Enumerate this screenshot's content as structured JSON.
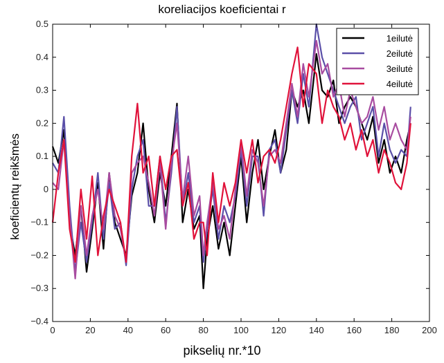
{
  "chart_data": {
    "type": "line",
    "title": "koreliacijos koeficientai r",
    "xlabel": "pikselių nr.*10",
    "ylabel": "koeficientų reikšmės",
    "xlim": [
      0,
      200
    ],
    "ylim": [
      -0.4,
      0.5
    ],
    "xticks": [
      "0",
      "20",
      "40",
      "60",
      "80",
      "100",
      "120",
      "140",
      "160",
      "180",
      "200"
    ],
    "yticks": [
      "0.5",
      "0.4",
      "0.3",
      "0.2",
      "0.1",
      "0",
      "−0.1",
      "−0.2",
      "−0.3",
      "−0.4"
    ],
    "grid": false,
    "legend_position": "top-right",
    "series": [
      {
        "name": "1eilutė",
        "color": "#000000",
        "x": [
          0,
          3,
          6,
          9,
          12,
          15,
          18,
          21,
          24,
          27,
          30,
          33,
          36,
          39,
          42,
          45,
          48,
          51,
          54,
          57,
          60,
          63,
          66,
          69,
          72,
          75,
          78,
          80,
          82,
          85,
          88,
          91,
          94,
          97,
          100,
          103,
          106,
          109,
          112,
          115,
          118,
          121,
          124,
          127,
          130,
          133,
          136,
          140,
          143,
          146,
          149,
          152,
          155,
          158,
          161,
          164,
          167,
          170,
          173,
          176,
          179,
          182,
          185,
          188,
          190
        ],
        "y": [
          0.13,
          0.08,
          0.18,
          -0.1,
          -0.2,
          -0.05,
          -0.25,
          -0.12,
          0.02,
          -0.18,
          0.05,
          -0.1,
          -0.15,
          -0.2,
          -0.02,
          0.05,
          0.2,
          0.0,
          -0.1,
          0.05,
          -0.05,
          0.1,
          0.26,
          -0.1,
          0.0,
          -0.12,
          -0.08,
          -0.3,
          -0.15,
          -0.05,
          -0.18,
          -0.1,
          -0.2,
          -0.05,
          0.1,
          -0.1,
          0.05,
          0.15,
          0.0,
          0.1,
          0.18,
          0.05,
          0.12,
          0.3,
          0.25,
          0.3,
          0.2,
          0.41,
          0.3,
          0.28,
          0.33,
          0.2,
          0.25,
          0.28,
          0.25,
          0.2,
          0.15,
          0.22,
          0.08,
          0.15,
          0.05,
          0.1,
          0.05,
          0.15,
          0.2
        ]
      },
      {
        "name": "2eilutė",
        "color": "#5a4fa8",
        "x": [
          0,
          3,
          6,
          9,
          12,
          15,
          18,
          21,
          24,
          27,
          30,
          33,
          36,
          39,
          42,
          45,
          48,
          51,
          54,
          57,
          60,
          63,
          66,
          69,
          72,
          75,
          78,
          80,
          82,
          85,
          88,
          91,
          94,
          97,
          100,
          103,
          106,
          109,
          112,
          115,
          118,
          121,
          124,
          127,
          130,
          133,
          136,
          140,
          143,
          146,
          149,
          152,
          155,
          158,
          161,
          164,
          167,
          170,
          173,
          176,
          179,
          182,
          185,
          188,
          190
        ],
        "y": [
          0.08,
          0.05,
          0.22,
          -0.05,
          -0.25,
          -0.1,
          -0.22,
          -0.1,
          0.05,
          -0.15,
          0.02,
          -0.12,
          -0.1,
          -0.23,
          0.0,
          0.1,
          0.15,
          -0.05,
          -0.05,
          0.1,
          -0.1,
          0.05,
          0.25,
          -0.05,
          0.05,
          -0.1,
          -0.05,
          -0.22,
          -0.12,
          0.0,
          -0.15,
          -0.05,
          -0.1,
          -0.02,
          0.12,
          -0.05,
          0.1,
          0.1,
          -0.08,
          0.12,
          0.15,
          0.05,
          0.18,
          0.3,
          0.2,
          0.35,
          0.25,
          0.5,
          0.4,
          0.35,
          0.3,
          0.25,
          0.2,
          0.25,
          0.28,
          0.15,
          0.2,
          0.25,
          0.1,
          0.2,
          0.12,
          0.08,
          0.12,
          0.1,
          0.25
        ]
      },
      {
        "name": "3eilutė",
        "color": "#a84ca0",
        "x": [
          0,
          3,
          6,
          9,
          12,
          15,
          18,
          21,
          24,
          27,
          30,
          33,
          36,
          39,
          42,
          45,
          48,
          51,
          54,
          57,
          60,
          63,
          66,
          69,
          72,
          75,
          78,
          80,
          82,
          85,
          88,
          91,
          94,
          97,
          100,
          103,
          106,
          109,
          112,
          115,
          118,
          121,
          124,
          127,
          130,
          133,
          136,
          140,
          143,
          146,
          149,
          152,
          155,
          158,
          161,
          164,
          167,
          170,
          173,
          176,
          179,
          182,
          185,
          188,
          190
        ],
        "y": [
          0.02,
          0.0,
          0.15,
          -0.08,
          -0.27,
          -0.05,
          -0.2,
          -0.08,
          0.0,
          -0.12,
          0.05,
          -0.08,
          -0.12,
          -0.22,
          0.05,
          0.08,
          0.1,
          0.02,
          -0.08,
          0.08,
          -0.12,
          0.08,
          0.2,
          -0.03,
          0.1,
          -0.08,
          -0.02,
          -0.2,
          -0.1,
          0.02,
          -0.12,
          -0.08,
          -0.15,
          0.0,
          0.14,
          -0.02,
          0.12,
          0.08,
          -0.05,
          0.1,
          0.12,
          0.08,
          0.2,
          0.32,
          0.22,
          0.38,
          0.28,
          0.45,
          0.35,
          0.38,
          0.28,
          0.32,
          0.22,
          0.3,
          0.25,
          0.2,
          0.22,
          0.28,
          0.18,
          0.25,
          0.15,
          0.2,
          0.15,
          0.12,
          0.22
        ]
      },
      {
        "name": "4eilutė",
        "color": "#e0123a",
        "x": [
          0,
          3,
          6,
          9,
          12,
          15,
          18,
          21,
          24,
          27,
          30,
          33,
          36,
          39,
          42,
          45,
          48,
          51,
          54,
          57,
          60,
          63,
          66,
          69,
          72,
          75,
          78,
          80,
          82,
          85,
          88,
          91,
          94,
          97,
          100,
          103,
          106,
          109,
          112,
          115,
          118,
          121,
          124,
          127,
          130,
          133,
          136,
          140,
          143,
          146,
          149,
          152,
          155,
          158,
          161,
          164,
          167,
          170,
          173,
          176,
          179,
          182,
          185,
          188,
          190
        ],
        "y": [
          -0.1,
          0.05,
          0.15,
          -0.12,
          -0.22,
          0.0,
          -0.15,
          0.04,
          -0.2,
          -0.08,
          0.0,
          -0.05,
          -0.1,
          -0.22,
          0.1,
          0.26,
          0.05,
          0.1,
          -0.05,
          0.1,
          0.0,
          0.1,
          0.12,
          -0.05,
          0.02,
          -0.15,
          -0.1,
          -0.1,
          -0.2,
          0.05,
          -0.1,
          0.02,
          -0.05,
          0.02,
          0.15,
          0.05,
          0.15,
          0.02,
          0.1,
          0.12,
          0.08,
          0.15,
          0.25,
          0.35,
          0.43,
          0.25,
          0.38,
          0.35,
          0.2,
          0.3,
          0.25,
          0.22,
          0.15,
          0.2,
          0.12,
          0.18,
          0.1,
          0.15,
          0.05,
          0.12,
          0.08,
          0.02,
          0.0,
          0.08,
          0.2
        ]
      }
    ]
  }
}
